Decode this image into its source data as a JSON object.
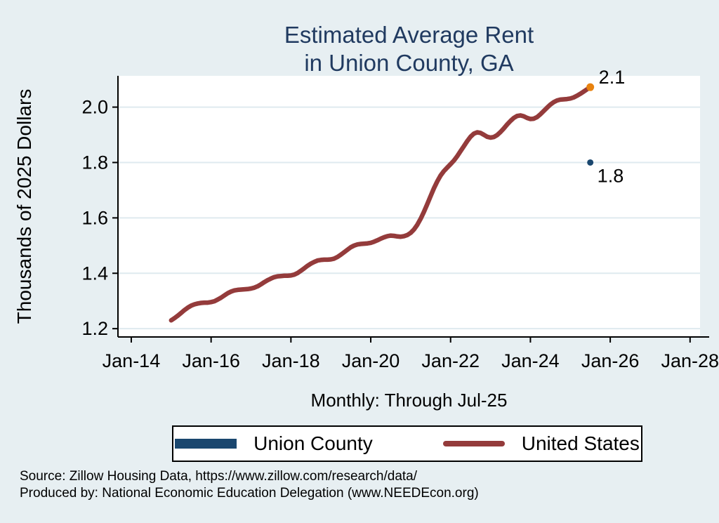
{
  "colors": {
    "background": "#e7eff2",
    "plot_background": "#ffffff",
    "gridline": "#dfeaef",
    "axis": "#000000",
    "title": "#203a60",
    "text": "#000000",
    "union_county": "#1a476f",
    "united_states": "#943b3b",
    "last_point_marker": "#e8820e"
  },
  "title": {
    "line1": "Estimated Average Rent",
    "line2": "in Union County, GA"
  },
  "y_axis_title": "Thousands of 2025 Dollars",
  "subtitle": "Monthly: Through Jul-25",
  "legend": {
    "items": [
      {
        "label": "Union County",
        "color": "#1a476f",
        "swatch": "thick-bar"
      },
      {
        "label": "United States",
        "color": "#943b3b",
        "swatch": "line"
      }
    ]
  },
  "footer": {
    "source": "Source: Zillow Housing Data, https://www.zillow.com/research/data/",
    "produced_by": "Produced by: National Economic Education Delegation (www.NEEDEcon.org)"
  },
  "chart_data": {
    "type": "line",
    "title": "Estimated Average Rent in Union County, GA",
    "subtitle": "Monthly: Through Jul-25",
    "xlabel": "",
    "ylabel": "Thousands of 2025 Dollars",
    "grid": "horizontal-only",
    "legend_position": "bottom",
    "y_ticks": [
      1.2,
      1.4,
      1.6,
      1.8,
      2.0
    ],
    "ylim": [
      1.17,
      2.113
    ],
    "x_ticks": {
      "months_since_jan_2014": [
        0,
        24,
        48,
        72,
        96,
        120,
        144,
        168
      ],
      "labels": [
        "Jan-14",
        "Jan-16",
        "Jan-18",
        "Jan-20",
        "Jan-22",
        "Jan-24",
        "Jan-26",
        "Jan-28"
      ]
    },
    "xlim_months_since_jan_2014": [
      -4,
      171
    ],
    "series": [
      {
        "name": "United States",
        "color": "#943b3b",
        "frequency": "monthly",
        "start": "2015-01",
        "end": "2025-07",
        "start_month_index_from_jan_2014": 12,
        "values": [
          1.23,
          1.238,
          1.247,
          1.257,
          1.267,
          1.276,
          1.283,
          1.288,
          1.291,
          1.293,
          1.294,
          1.294,
          1.296,
          1.299,
          1.305,
          1.312,
          1.32,
          1.328,
          1.334,
          1.338,
          1.34,
          1.341,
          1.342,
          1.343,
          1.345,
          1.348,
          1.353,
          1.36,
          1.368,
          1.375,
          1.381,
          1.386,
          1.389,
          1.39,
          1.391,
          1.391,
          1.392,
          1.395,
          1.401,
          1.409,
          1.418,
          1.427,
          1.435,
          1.441,
          1.446,
          1.448,
          1.449,
          1.449,
          1.45,
          1.453,
          1.459,
          1.467,
          1.476,
          1.485,
          1.494,
          1.5,
          1.504,
          1.506,
          1.507,
          1.508,
          1.51,
          1.514,
          1.519,
          1.525,
          1.53,
          1.534,
          1.536,
          1.535,
          1.533,
          1.532,
          1.534,
          1.538,
          1.546,
          1.558,
          1.575,
          1.597,
          1.622,
          1.65,
          1.679,
          1.707,
          1.732,
          1.753,
          1.769,
          1.782,
          1.794,
          1.807,
          1.823,
          1.841,
          1.859,
          1.877,
          1.893,
          1.904,
          1.909,
          1.907,
          1.9,
          1.893,
          1.89,
          1.892,
          1.899,
          1.91,
          1.923,
          1.937,
          1.95,
          1.961,
          1.968,
          1.97,
          1.967,
          1.961,
          1.957,
          1.958,
          1.964,
          1.974,
          1.986,
          1.998,
          2.009,
          2.018,
          2.024,
          2.027,
          2.028,
          2.029,
          2.031,
          2.035,
          2.041,
          2.048,
          2.056,
          2.064,
          2.072
        ],
        "end_label": "2.1",
        "end_marker_color": "#e8820e"
      },
      {
        "name": "Union County",
        "color": "#1a476f",
        "points": [
          {
            "date": "2025-07",
            "month_index_from_jan_2014": 138,
            "value": 1.8
          }
        ],
        "end_label": "1.8"
      }
    ]
  }
}
